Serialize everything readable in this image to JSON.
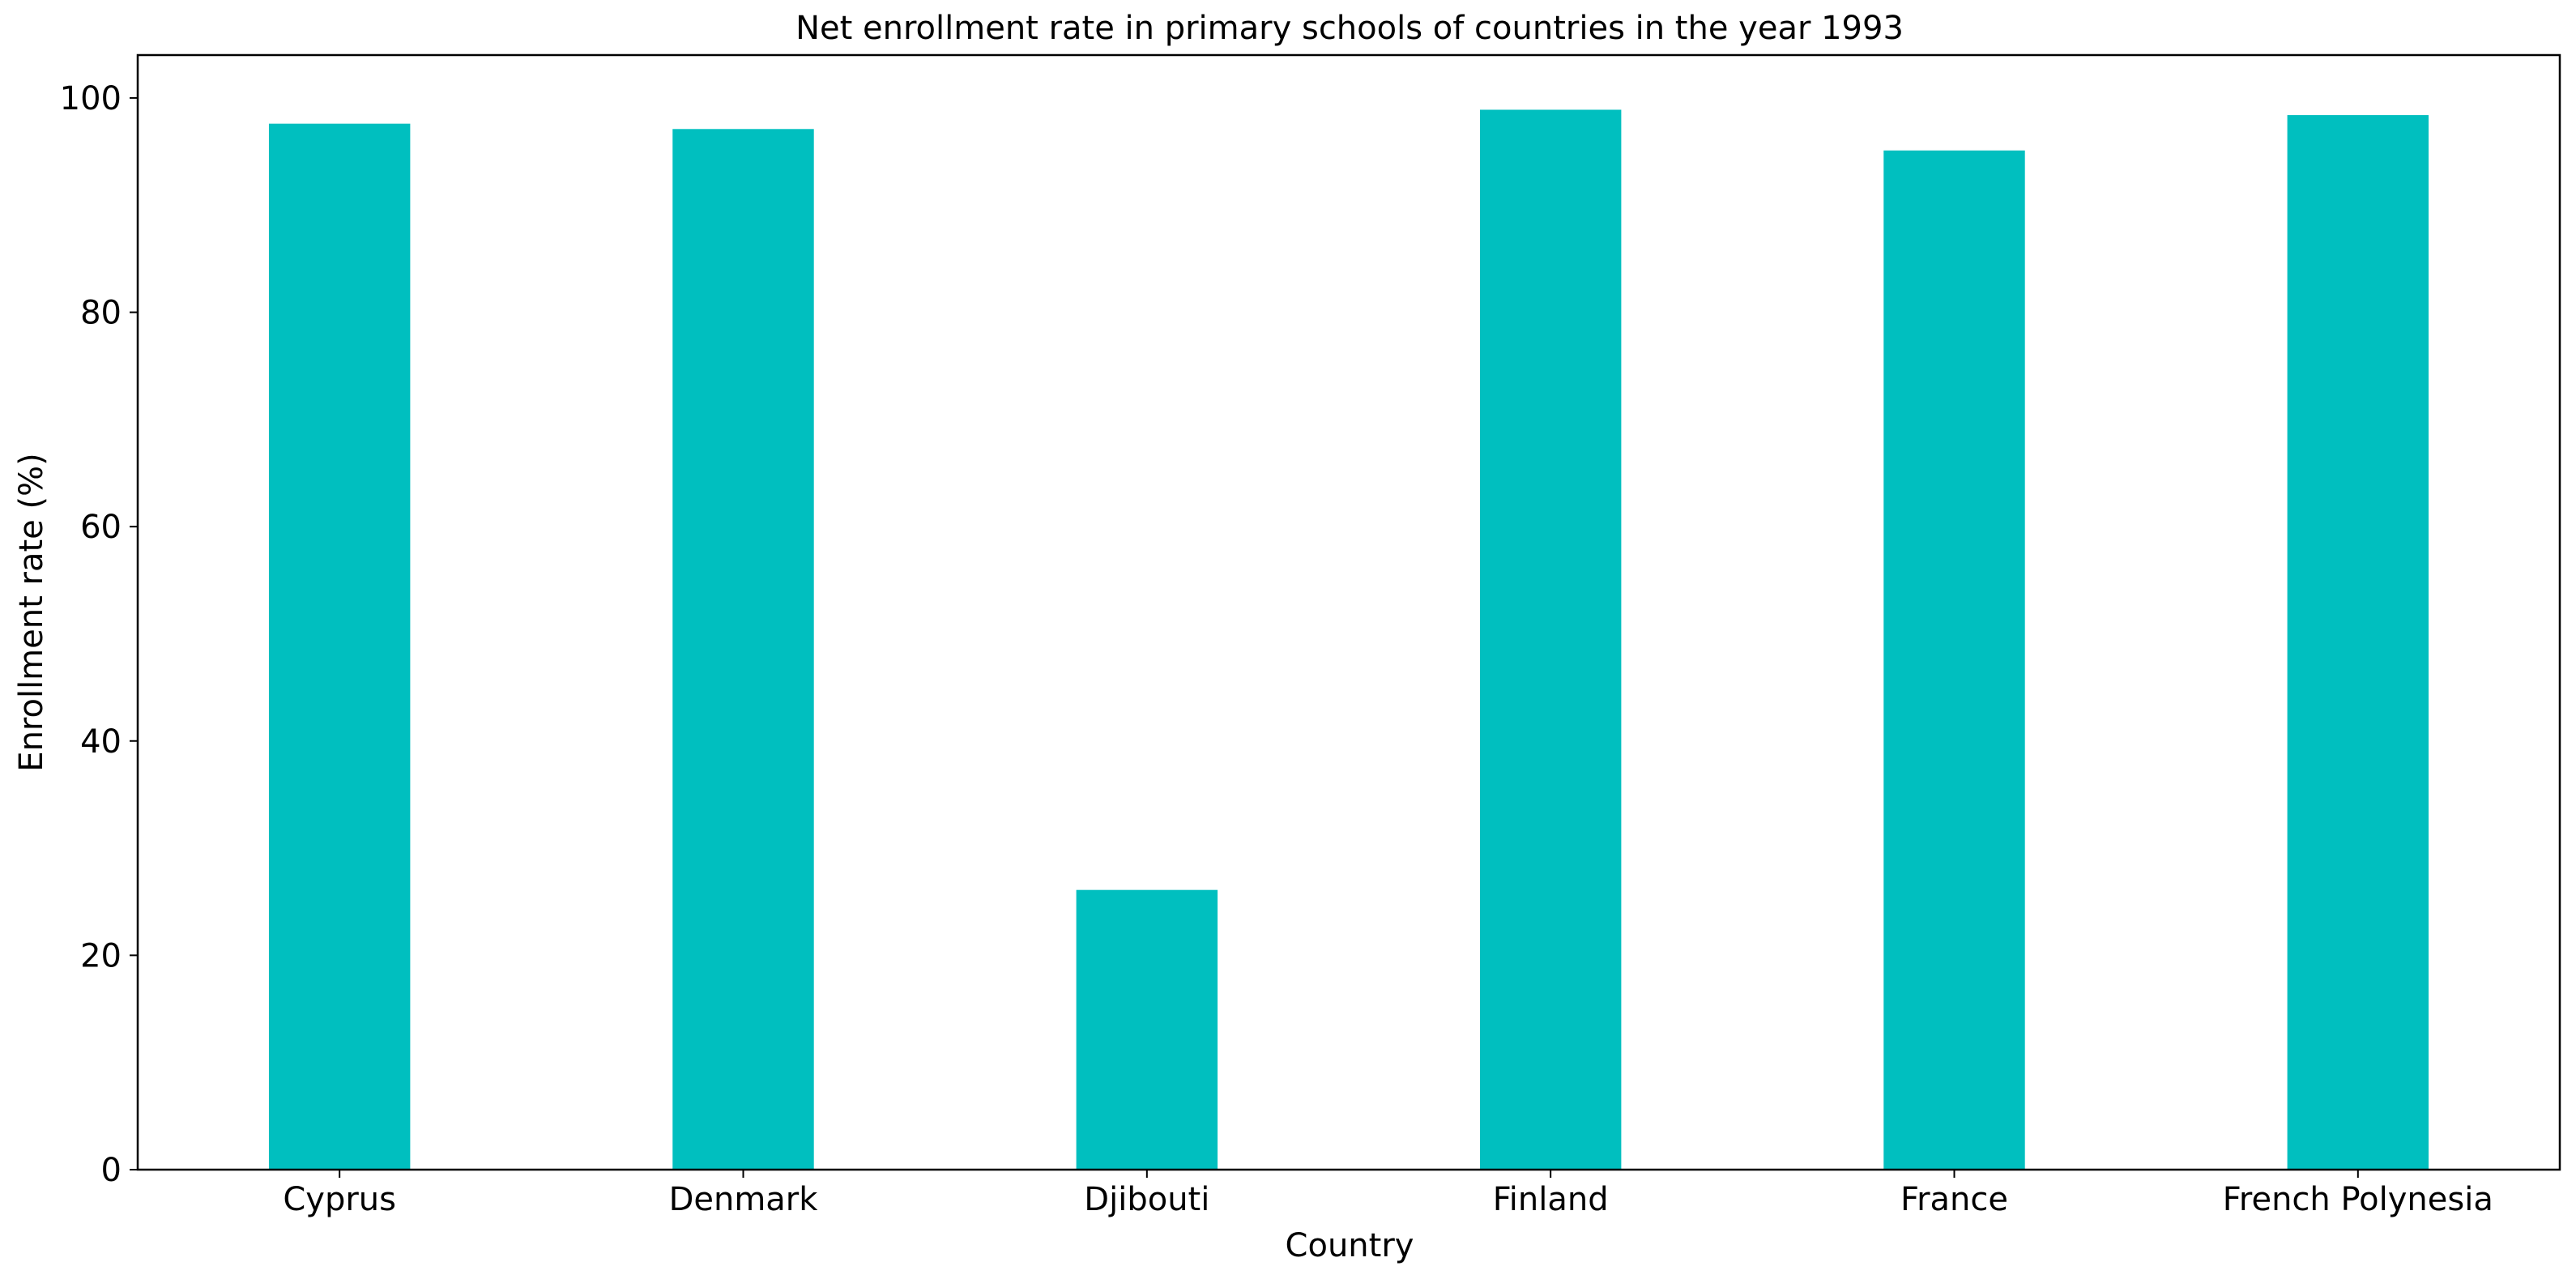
{
  "chart_data": {
    "type": "bar",
    "title": "Net enrollment rate in primary schools of countries in the year 1993",
    "xlabel": "Country",
    "ylabel": "Enrollment rate (%)",
    "categories": [
      "Cyprus",
      "Denmark",
      "Djibouti",
      "Finland",
      "France",
      "French Polynesia"
    ],
    "values": [
      97.6,
      97.1,
      26.1,
      98.9,
      95.1,
      98.4
    ],
    "ylim": [
      0,
      104
    ],
    "yticks": [
      0,
      20,
      40,
      60,
      80,
      100
    ],
    "grid": false,
    "legend": "none",
    "bar_color": "#00bfbf"
  }
}
